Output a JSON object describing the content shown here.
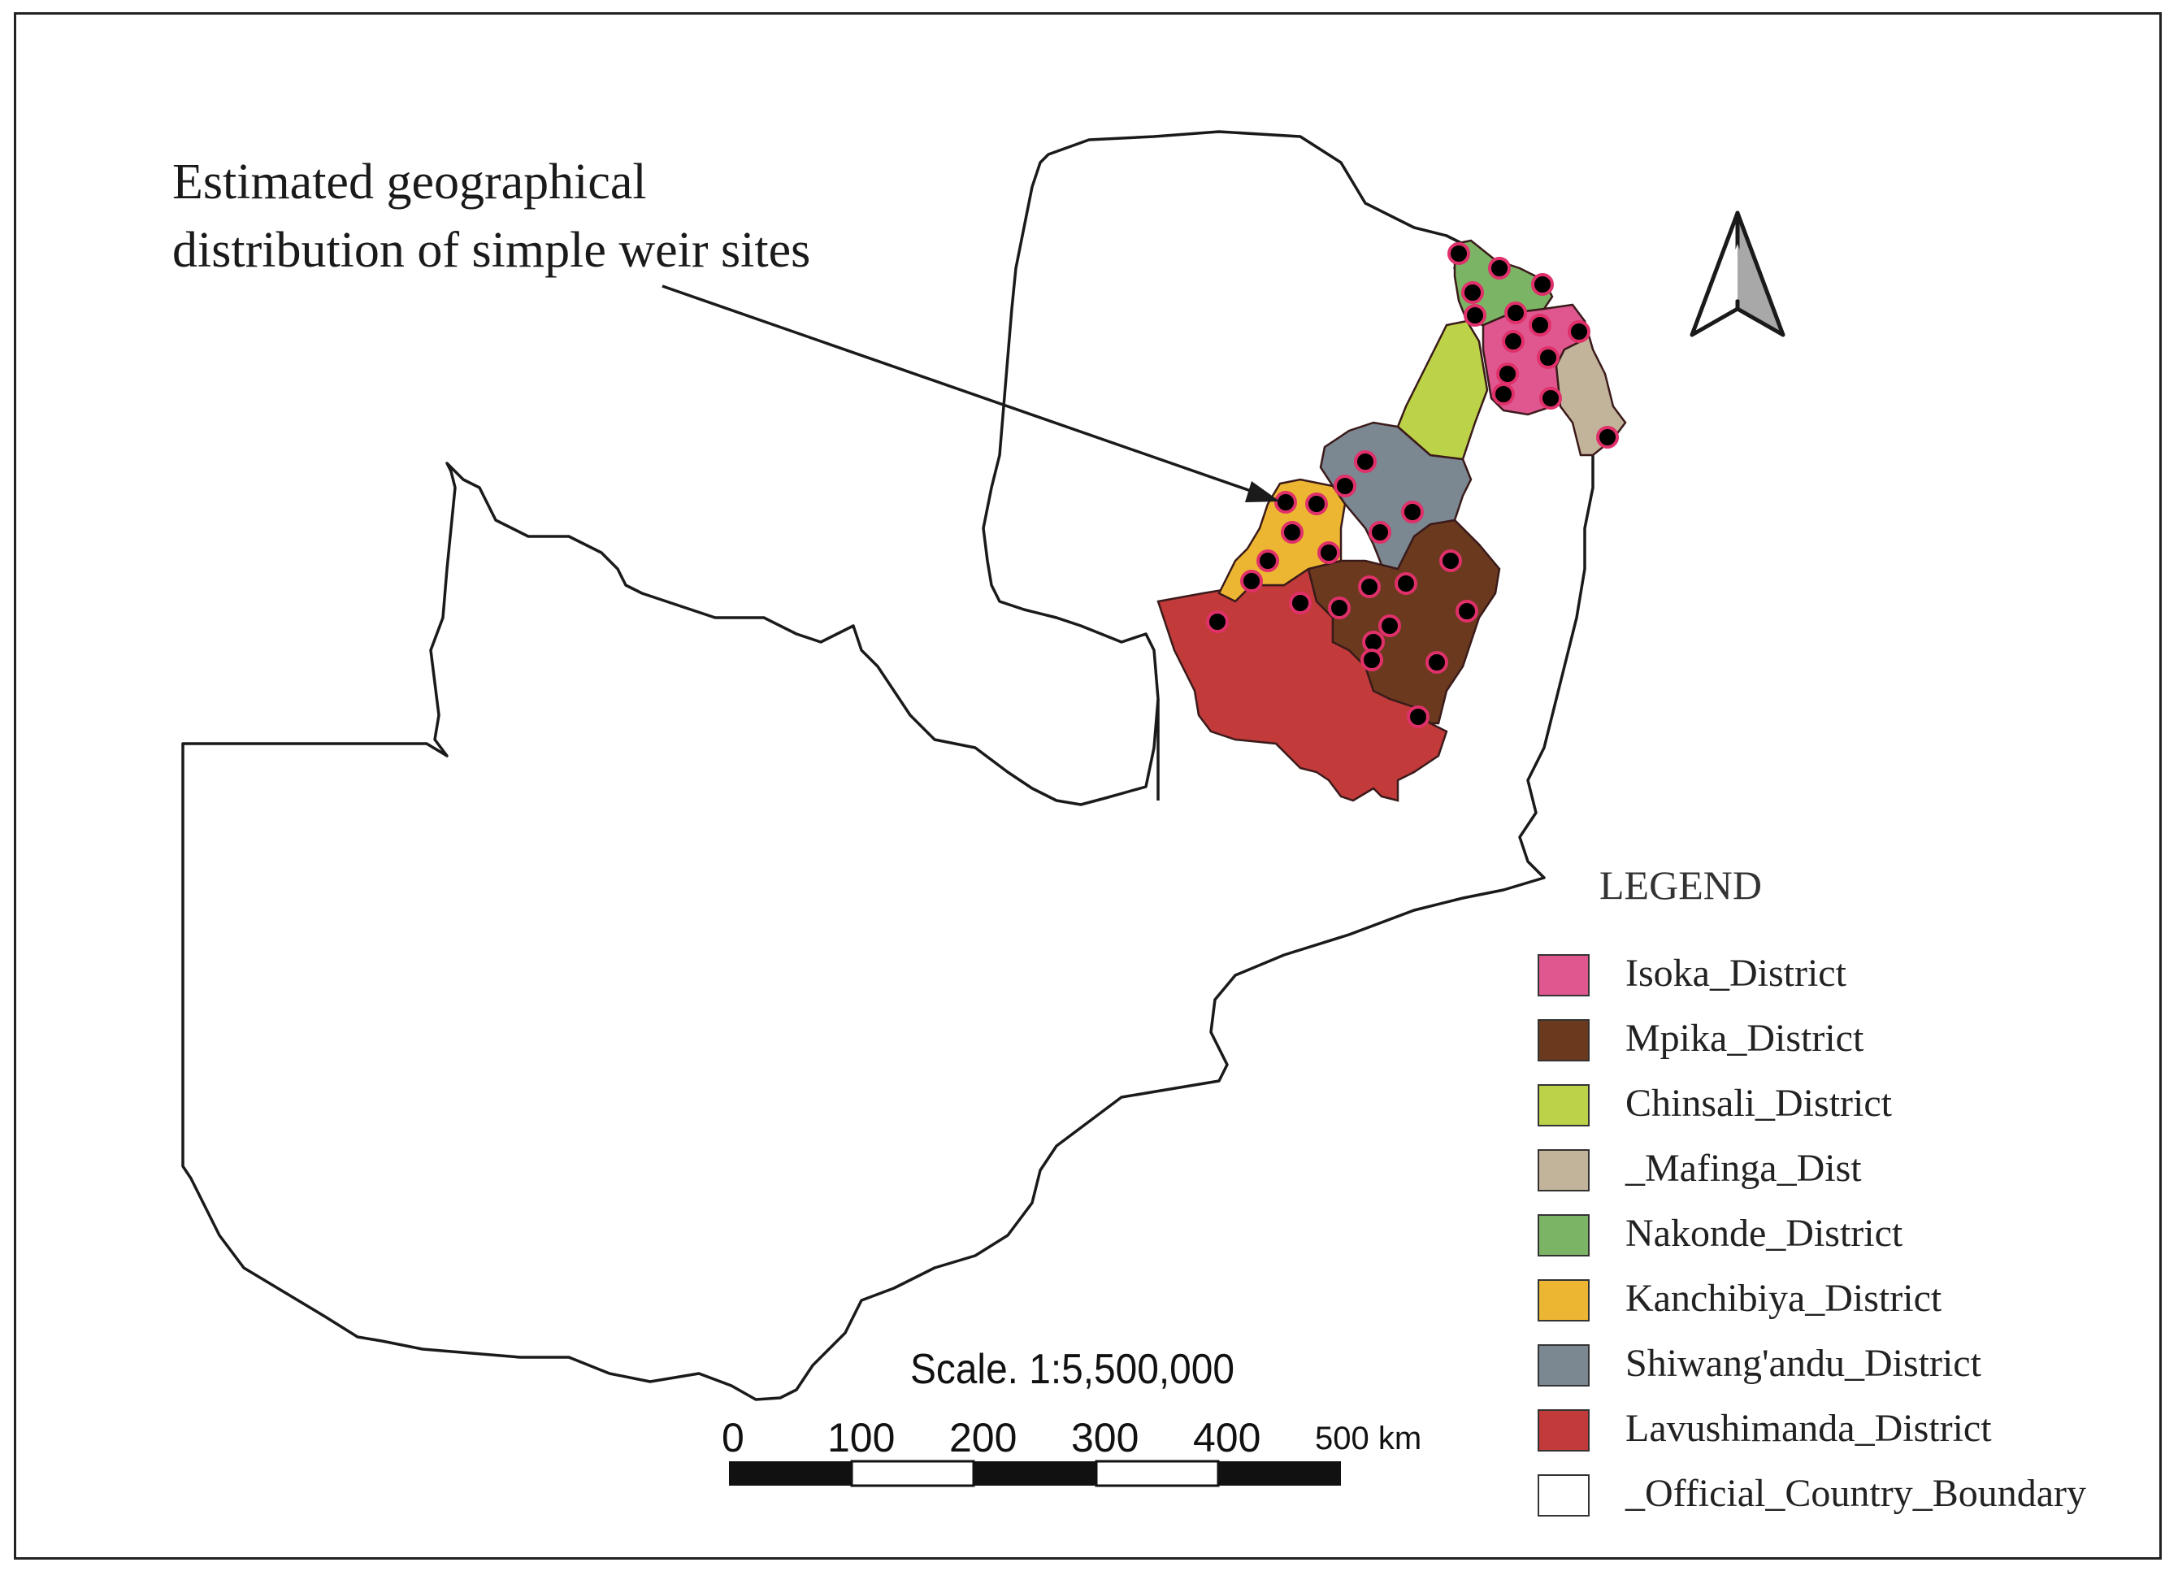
{
  "annotation": {
    "line1": "Estimated geographical",
    "line2": "distribution  of simple weir sites"
  },
  "legend": {
    "title": "LEGEND",
    "items": [
      {
        "label": "Isoka_District",
        "color": "#e0578f"
      },
      {
        "label": "Mpika_District",
        "color": "#6b3a1e"
      },
      {
        "label": "Chinsali_District",
        "color": "#bcd248"
      },
      {
        "label": "_Mafinga_Dist",
        "color": "#c2b49a"
      },
      {
        "label": "Nakonde_District",
        "color": "#7cb466"
      },
      {
        "label": "Kanchibiya_District",
        "color": "#ecb632"
      },
      {
        "label": "Shiwang'andu_District",
        "color": "#7b8791"
      },
      {
        "label": "Lavushimanda_District",
        "color": "#c23a3a"
      },
      {
        "label": "_Official_Country_Boundary",
        "color": "#ffffff"
      }
    ]
  },
  "scale": {
    "label": "Scale. 1:5,500,000",
    "ticks": [
      "0",
      "100",
      "200",
      "300",
      "400"
    ],
    "end_label": "500 km"
  },
  "colors": {
    "boundary": "#1a1a1a",
    "weir_site_fill": "#000000",
    "weir_site_ring": "#e0306a"
  },
  "icons": {
    "north_arrow": "north-arrow-icon"
  }
}
